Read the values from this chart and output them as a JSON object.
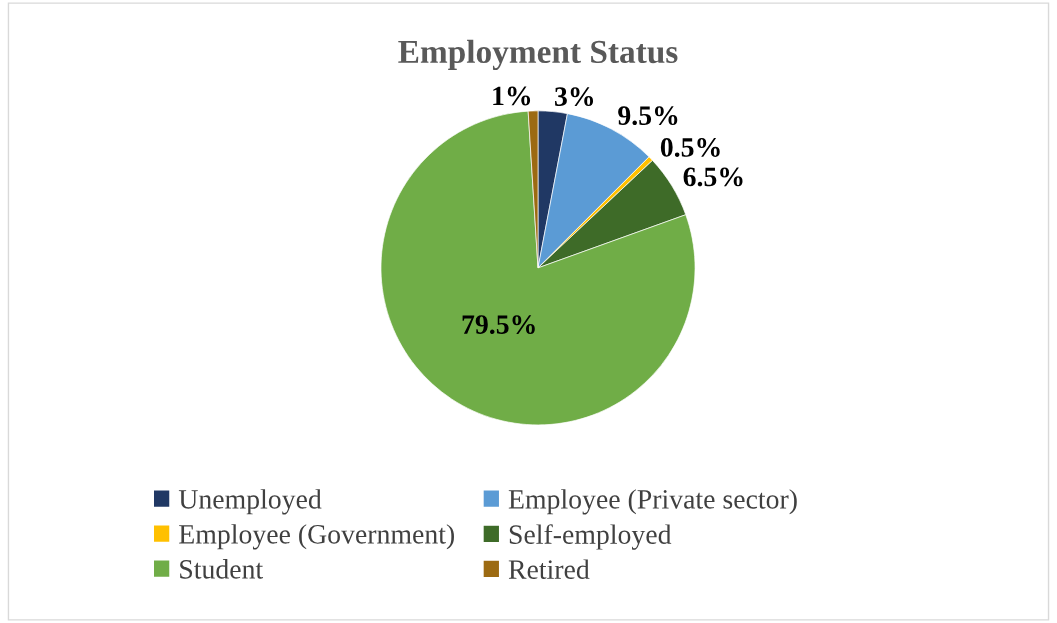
{
  "chart_data": {
    "type": "pie",
    "title": "Employment Status",
    "categories": [
      "Unemployed",
      "Employee (Private sector)",
      "Employee (Government)",
      "Self-employed",
      "Student",
      "Retired"
    ],
    "values": [
      3,
      9.5,
      0.5,
      6.5,
      79.5,
      1
    ],
    "value_labels": [
      "3%",
      "9.5%",
      "0.5%",
      "6.5%",
      "79.5%",
      "1%"
    ],
    "colors": [
      "#203864",
      "#5b9bd5",
      "#ffc000",
      "#3e6b28",
      "#70ad47",
      "#9c6a12"
    ],
    "legend": "bottom"
  }
}
